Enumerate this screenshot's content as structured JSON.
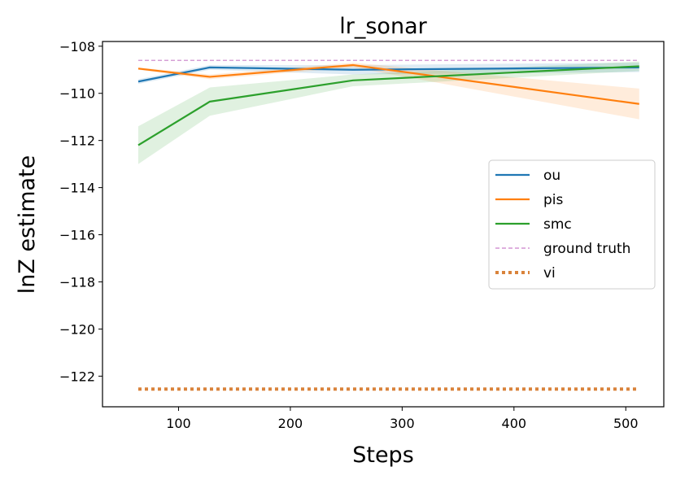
{
  "chart_data": {
    "type": "line",
    "title": "lr_sonar",
    "xlabel": "Steps",
    "ylabel": "lnZ estimate",
    "xlim": [
      32,
      534
    ],
    "ylim": [
      -123.3,
      -107.8
    ],
    "xticks": [
      100,
      200,
      300,
      400,
      500
    ],
    "yticks": [
      -122,
      -120,
      -118,
      -116,
      -114,
      -112,
      -110,
      -108
    ],
    "xtick_labels": [
      "100",
      "200",
      "300",
      "400",
      "500"
    ],
    "ytick_labels": [
      "−122",
      "−120",
      "−118",
      "−116",
      "−114",
      "−112",
      "−110",
      "−108"
    ],
    "legend_position": "center-right",
    "grid": false,
    "series": [
      {
        "name": "ou",
        "color": "#1f77b4",
        "style": "solid",
        "x": [
          64,
          128,
          256,
          512
        ],
        "y": [
          -109.5,
          -108.9,
          -109.0,
          -108.9
        ],
        "band_low": [
          -109.6,
          -109.0,
          -109.2,
          -109.1
        ],
        "band_high": [
          -109.4,
          -108.8,
          -108.8,
          -108.7
        ]
      },
      {
        "name": "pis",
        "color": "#ff7f0e",
        "style": "solid",
        "x": [
          64,
          128,
          256,
          512
        ],
        "y": [
          -108.95,
          -109.3,
          -108.8,
          -110.45
        ],
        "band_low": [
          -109.0,
          -109.4,
          -108.9,
          -111.1
        ],
        "band_high": [
          -108.9,
          -109.2,
          -108.7,
          -109.8
        ]
      },
      {
        "name": "smc",
        "color": "#2ca02c",
        "style": "solid",
        "x": [
          64,
          128,
          256,
          512
        ],
        "y": [
          -112.2,
          -110.35,
          -109.45,
          -108.85
        ],
        "band_low": [
          -113.0,
          -110.95,
          -109.7,
          -109.05
        ],
        "band_high": [
          -111.4,
          -109.75,
          -109.2,
          -108.65
        ]
      },
      {
        "name": "ground truth",
        "color": "#c980c9",
        "style": "dashed",
        "x": [
          64,
          512
        ],
        "y": [
          -108.6,
          -108.6
        ]
      },
      {
        "name": "vi",
        "color": "#d9833b",
        "style": "dotted",
        "x": [
          64,
          512
        ],
        "y": [
          -122.55,
          -122.55
        ]
      }
    ]
  }
}
